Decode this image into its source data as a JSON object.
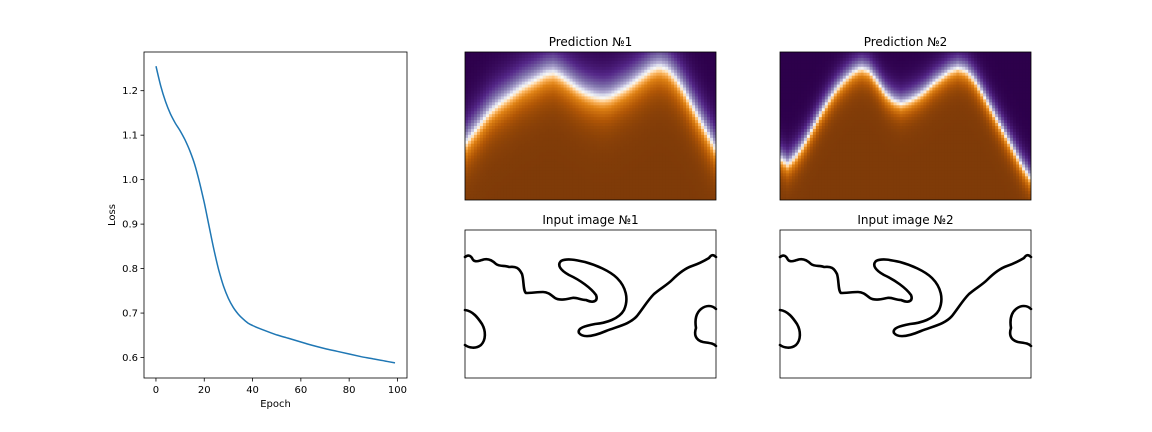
{
  "chart_data": [
    {
      "type": "line",
      "title": "",
      "xlabel": "Epoch",
      "ylabel": "Loss",
      "xlim": [
        -4.95,
        103.95
      ],
      "ylim": [
        0.554,
        1.287
      ],
      "xticks": [
        0,
        20,
        40,
        60,
        80,
        100
      ],
      "yticks": [
        0.6,
        0.7,
        0.8,
        0.9,
        1.0,
        1.1,
        1.2
      ],
      "xtick_labels": [
        "0",
        "20",
        "40",
        "60",
        "80",
        "100"
      ],
      "ytick_labels": [
        "0.6",
        "0.7",
        "0.8",
        "0.9",
        "1.0",
        "1.1",
        "1.2"
      ],
      "grid": false,
      "series": [
        {
          "color": "#1f77b4",
          "x": [
            0,
            2,
            4,
            6,
            8,
            10,
            12,
            14,
            16,
            18,
            20,
            22,
            24,
            26,
            28,
            30,
            32,
            34,
            36,
            38,
            40,
            45,
            50,
            55,
            60,
            65,
            70,
            75,
            80,
            85,
            90,
            95,
            99
          ],
          "y": [
            1.255,
            1.21,
            1.175,
            1.148,
            1.127,
            1.11,
            1.09,
            1.065,
            1.035,
            0.995,
            0.948,
            0.895,
            0.843,
            0.797,
            0.76,
            0.733,
            0.713,
            0.698,
            0.687,
            0.678,
            0.672,
            0.661,
            0.651,
            0.643,
            0.635,
            0.627,
            0.62,
            0.614,
            0.608,
            0.602,
            0.597,
            0.592,
            0.588
          ]
        }
      ]
    },
    {
      "type": "heatmap",
      "title": "Prediction №1",
      "colormap": "PuOr",
      "boundary": [
        0.62,
        0.55,
        0.48,
        0.41,
        0.36,
        0.32,
        0.28,
        0.24,
        0.21,
        0.18,
        0.15,
        0.14,
        0.17,
        0.21,
        0.25,
        0.28,
        0.3,
        0.31,
        0.3,
        0.27,
        0.24,
        0.2,
        0.16,
        0.12,
        0.1,
        0.12,
        0.18,
        0.26,
        0.36,
        0.46,
        0.56,
        0.66
      ],
      "transition_width": 0.14
    },
    {
      "type": "heatmap",
      "title": "Prediction №2",
      "colormap": "PuOr",
      "boundary": [
        0.72,
        0.76,
        0.7,
        0.62,
        0.52,
        0.42,
        0.33,
        0.25,
        0.19,
        0.14,
        0.11,
        0.13,
        0.2,
        0.28,
        0.33,
        0.35,
        0.33,
        0.3,
        0.26,
        0.21,
        0.17,
        0.13,
        0.11,
        0.13,
        0.19,
        0.28,
        0.38,
        0.48,
        0.58,
        0.68,
        0.78,
        0.86
      ],
      "transition_width": 0.09
    },
    {
      "type": "image",
      "title": "Input image №1"
    },
    {
      "type": "image",
      "title": "Input image №2"
    }
  ]
}
